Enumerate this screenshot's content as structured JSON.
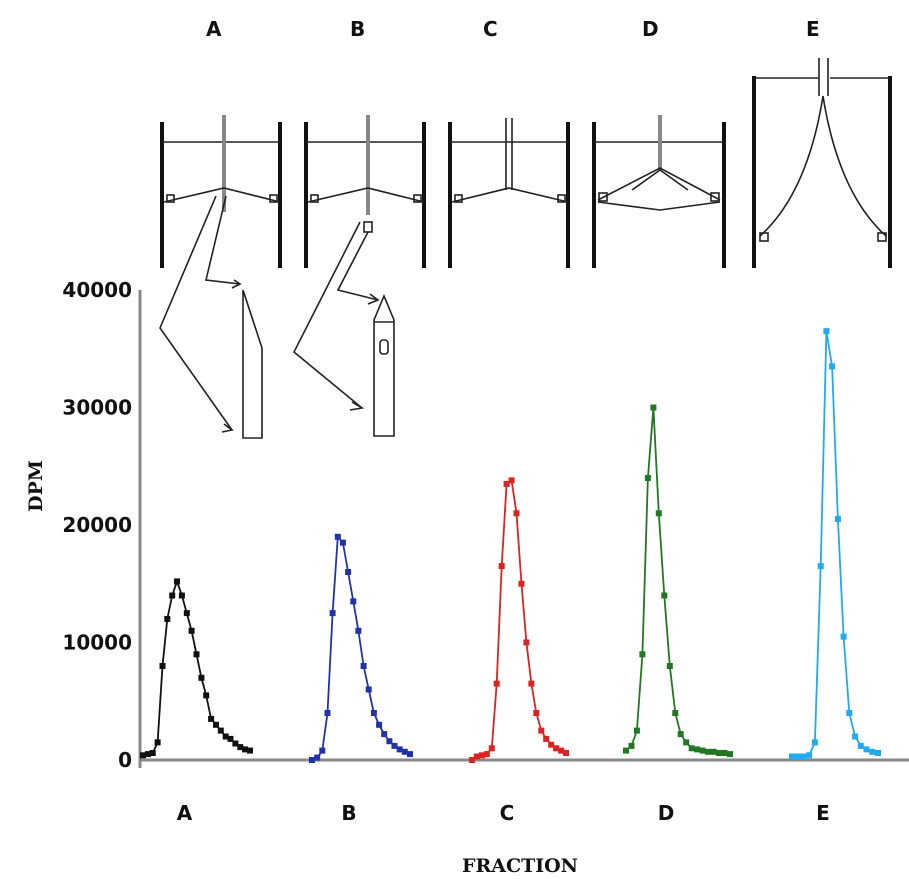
{
  "chart_data": {
    "type": "line",
    "ylabel": "DPM",
    "xlabel": "FRACTION",
    "ylim": [
      0,
      40000
    ],
    "y_ticks": [
      {
        "value": 0,
        "label": "0"
      },
      {
        "value": 10000,
        "label": "10000"
      },
      {
        "value": 20000,
        "label": "20000"
      },
      {
        "value": 30000,
        "label": "30000"
      },
      {
        "value": 40000,
        "label": "40000"
      }
    ],
    "grid": false,
    "legend": "none",
    "panel_labels_top": [
      "A",
      "B",
      "C",
      "D",
      "E"
    ],
    "series": [
      {
        "name": "A",
        "color": "#111111",
        "values": [
          400,
          500,
          600,
          1500,
          8000,
          12000,
          14000,
          15200,
          14000,
          12500,
          11000,
          9000,
          7000,
          5500,
          3500,
          3000,
          2500,
          2000,
          1800,
          1400,
          1100,
          900,
          800
        ]
      },
      {
        "name": "B",
        "color": "#2233aa",
        "values": [
          0,
          200,
          800,
          4000,
          12500,
          19000,
          18500,
          16000,
          13500,
          11000,
          8000,
          6000,
          4000,
          3000,
          2200,
          1600,
          1200,
          900,
          700,
          500
        ]
      },
      {
        "name": "C",
        "color": "#dd2222",
        "values": [
          0,
          300,
          400,
          500,
          1000,
          6500,
          16500,
          23500,
          23800,
          21000,
          15000,
          10000,
          6500,
          4000,
          2500,
          1800,
          1300,
          1000,
          800,
          600
        ]
      },
      {
        "name": "D",
        "color": "#227722",
        "values": [
          800,
          1200,
          2500,
          9000,
          24000,
          30000,
          21000,
          14000,
          8000,
          4000,
          2200,
          1500,
          1000,
          900,
          800,
          700,
          700,
          600,
          600,
          500
        ]
      },
      {
        "name": "E",
        "color": "#22aaee",
        "values": [
          300,
          300,
          300,
          400,
          1500,
          16500,
          36500,
          33500,
          20500,
          10500,
          4000,
          2000,
          1200,
          900,
          700,
          600
        ]
      }
    ]
  },
  "icons": {
    "diagram_a": "tube-with-needle-and-bevel-tip",
    "diagram_b": "tube-with-needle-and-side-port-tip",
    "diagram_c": "tube-with-single-needle",
    "diagram_d": "tube-with-split-needle",
    "diagram_e": "tall-tube-with-flared-needle"
  }
}
